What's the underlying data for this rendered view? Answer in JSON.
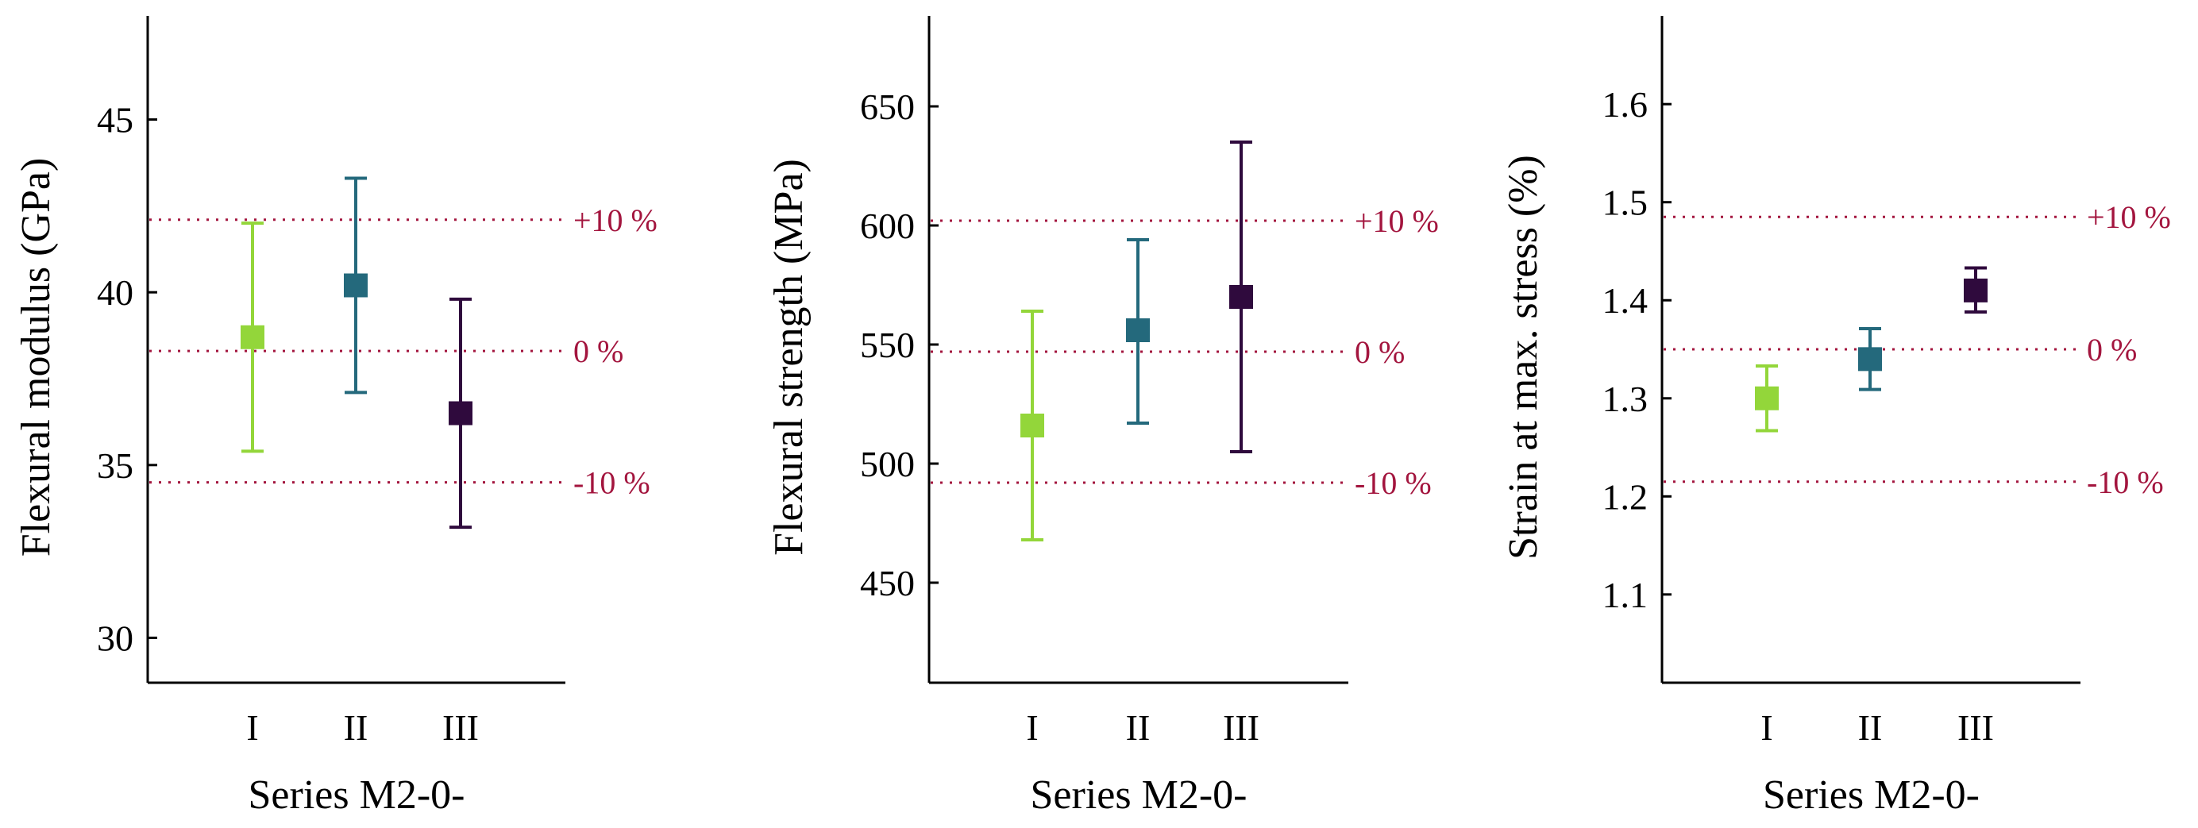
{
  "colors": {
    "series_I": "#93d63a",
    "series_II": "#24697c",
    "series_III": "#2f0a3d",
    "reference": "#a3153e"
  },
  "chart_data": [
    {
      "type": "errorbar",
      "ylabel": "Flexural modulus (GPa)",
      "xlabel": "Series M2-0-",
      "ylim": [
        28.7,
        48
      ],
      "yticks": [
        30,
        35,
        40,
        45
      ],
      "categories": [
        "I",
        "II",
        "III"
      ],
      "values": [
        38.7,
        40.2,
        36.5
      ],
      "lower": [
        35.4,
        37.1,
        33.2
      ],
      "upper": [
        42.0,
        43.3,
        39.8
      ],
      "reference_lines": [
        {
          "label": "+10 %",
          "value": 42.1
        },
        {
          "label": "0 %",
          "value": 38.3
        },
        {
          "label": "-10 %",
          "value": 34.5
        }
      ]
    },
    {
      "type": "errorbar",
      "ylabel": "Flexural strength (MPa)",
      "xlabel": "Series M2-0-",
      "ylim": [
        408,
        688
      ],
      "yticks": [
        450,
        500,
        550,
        600,
        650
      ],
      "categories": [
        "I",
        "II",
        "III"
      ],
      "values": [
        516,
        556,
        570
      ],
      "lower": [
        468,
        517,
        505
      ],
      "upper": [
        564,
        594,
        635
      ],
      "reference_lines": [
        {
          "label": "+10 %",
          "value": 602
        },
        {
          "label": "0 %",
          "value": 547
        },
        {
          "label": "-10 %",
          "value": 492
        }
      ]
    },
    {
      "type": "errorbar",
      "ylabel": "Strain at max. stress (%)",
      "xlabel": "Series M2-0-",
      "ylim": [
        1.01,
        1.69
      ],
      "yticks": [
        1.1,
        1.2,
        1.3,
        1.4,
        1.5,
        1.6
      ],
      "categories": [
        "I",
        "II",
        "III"
      ],
      "values": [
        1.3,
        1.34,
        1.41
      ],
      "lower": [
        1.267,
        1.309,
        1.388
      ],
      "upper": [
        1.333,
        1.371,
        1.433
      ],
      "reference_lines": [
        {
          "label": "+10 %",
          "value": 1.485
        },
        {
          "label": "0 %",
          "value": 1.35
        },
        {
          "label": "-10 %",
          "value": 1.215
        }
      ]
    }
  ]
}
